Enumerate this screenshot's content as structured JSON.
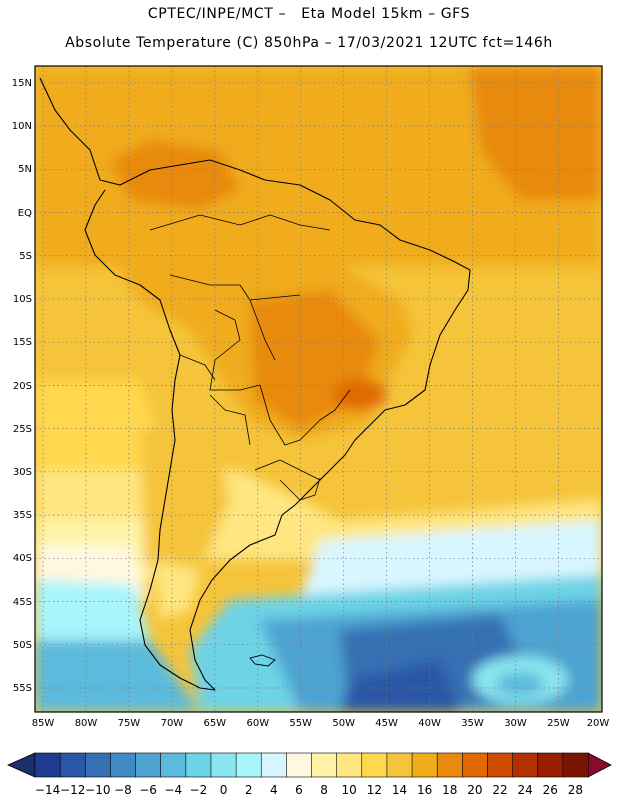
{
  "header": {
    "line1": "CPTEC/INPE/MCT –   Eta Model 15km – GFS",
    "line2": "Absolute Temperature (C) 850hPa – 17/03/2021 12UTC fct=146h"
  },
  "map": {
    "lat_labels": [
      "15N",
      "10N",
      "5N",
      "EQ",
      "5S",
      "10S",
      "15S",
      "20S",
      "25S",
      "30S",
      "35S",
      "40S",
      "45S",
      "50S",
      "55S"
    ],
    "lon_labels": [
      "85W",
      "80W",
      "75W",
      "70W",
      "65W",
      "60W",
      "55W",
      "50W",
      "45W",
      "40W",
      "35W",
      "30W",
      "25W",
      "20W"
    ]
  },
  "colorbar": {
    "labels": [
      "-14",
      "-12",
      "-10",
      "-8",
      "-6",
      "-4",
      "-2",
      "0",
      "2",
      "4",
      "6",
      "8",
      "10",
      "12",
      "14",
      "16",
      "18",
      "20",
      "22",
      "24",
      "26",
      "28"
    ],
    "colors": [
      "#1f3d8f",
      "#2a56a6",
      "#3670b3",
      "#418ac3",
      "#4ea3d1",
      "#5cbbdc",
      "#6dd3e6",
      "#8ae6f0",
      "#a8f5fb",
      "#d8f6ff",
      "#fff8e1",
      "#fff3a8",
      "#ffe680",
      "#ffd84d",
      "#f5c43a",
      "#f0ac1a",
      "#e88a10",
      "#e06a00",
      "#cc4b00",
      "#b33000",
      "#991d00",
      "#7a1500"
    ],
    "arrow_low": "#1c2f6d",
    "arrow_high": "#8a0a2a"
  }
}
